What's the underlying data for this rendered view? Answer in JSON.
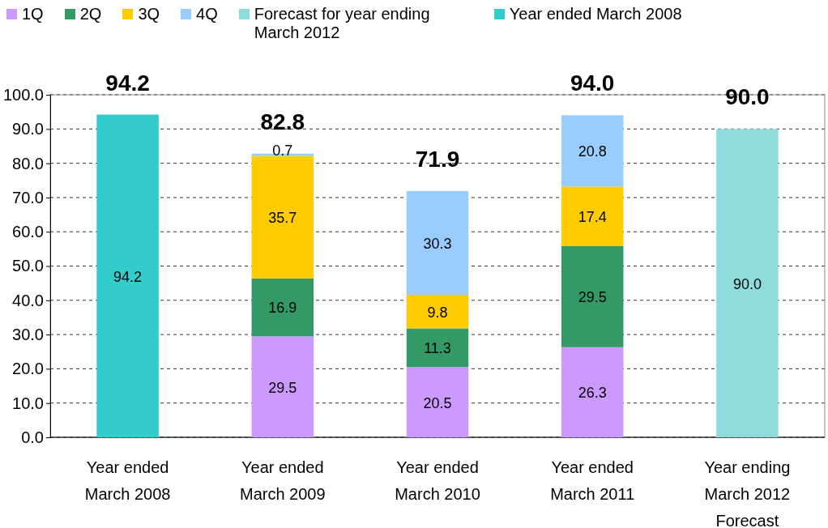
{
  "chart_data": {
    "type": "bar",
    "stacked": true,
    "categories": [
      "Year ended\nMarch 2008",
      "Year ended\nMarch 2009",
      "Year ended\nMarch 2010",
      "Year ended\nMarch 2011",
      "Year ending\nMarch 2012\nForecast"
    ],
    "series": [
      {
        "name": "1Q",
        "color": "#cc99ff",
        "values": [
          null,
          29.5,
          20.5,
          26.3,
          null
        ],
        "value_labels": [
          null,
          "29.5",
          "20.5",
          "26.3",
          null
        ]
      },
      {
        "name": "2Q",
        "color": "#339966",
        "values": [
          null,
          16.9,
          11.3,
          29.5,
          null
        ],
        "value_labels": [
          null,
          "16.9",
          "11.3",
          "29.5",
          null
        ]
      },
      {
        "name": "3Q",
        "color": "#ffcc00",
        "values": [
          null,
          35.7,
          9.8,
          17.4,
          null
        ],
        "value_labels": [
          null,
          "35.7",
          "9.8",
          "17.4",
          null
        ]
      },
      {
        "name": "4Q",
        "color": "#99ccff",
        "values": [
          null,
          0.7,
          30.3,
          20.8,
          null
        ],
        "value_labels": [
          null,
          "0.7",
          "30.3",
          "20.8",
          null
        ]
      },
      {
        "name": "Forecast for year ending March 2012",
        "color": "#8fdcdc",
        "values": [
          null,
          null,
          null,
          null,
          90.0
        ],
        "value_labels": [
          null,
          null,
          null,
          null,
          "90.0"
        ]
      },
      {
        "name": "Year ended March 2008",
        "color": "#33cccc",
        "values": [
          94.2,
          null,
          null,
          null,
          null
        ],
        "value_labels": [
          "94.2",
          null,
          null,
          null,
          null
        ]
      }
    ],
    "totals": [
      "94.2",
      "82.8",
      "71.9",
      "94.0",
      "90.0"
    ],
    "ylim": [
      0,
      100
    ],
    "yticks": [
      {
        "value": 0,
        "label": "0.0"
      },
      {
        "value": 10,
        "label": "10.0"
      },
      {
        "value": 20,
        "label": "20.0"
      },
      {
        "value": 30,
        "label": "30.0"
      },
      {
        "value": 40,
        "label": "40.0"
      },
      {
        "value": 50,
        "label": "50.0"
      },
      {
        "value": 60,
        "label": "60.0"
      },
      {
        "value": 70,
        "label": "70.0"
      },
      {
        "value": 80,
        "label": "80.0"
      },
      {
        "value": 90,
        "label": "90.0"
      },
      {
        "value": 100,
        "label": "100.0"
      }
    ],
    "grid": "y",
    "legend": "top"
  }
}
